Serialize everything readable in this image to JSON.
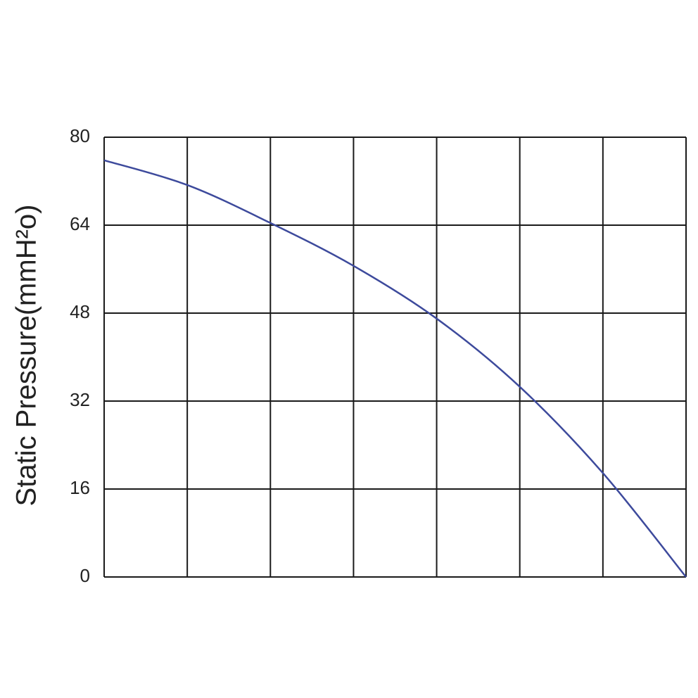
{
  "chart_data": {
    "type": "line",
    "y_label": "Static Pressure(mmH²o)",
    "categories": [
      null,
      null,
      null,
      null,
      null,
      null,
      null,
      null
    ],
    "series": [
      {
        "color": "#3d4a9c",
        "values": [
          75.8,
          71.3,
          64.4,
          56.6,
          47.0,
          34.6,
          18.9,
          0
        ]
      }
    ],
    "ylim": [
      0,
      80
    ],
    "yticks": [
      0,
      16,
      32,
      48,
      64,
      80
    ],
    "grid": true
  }
}
